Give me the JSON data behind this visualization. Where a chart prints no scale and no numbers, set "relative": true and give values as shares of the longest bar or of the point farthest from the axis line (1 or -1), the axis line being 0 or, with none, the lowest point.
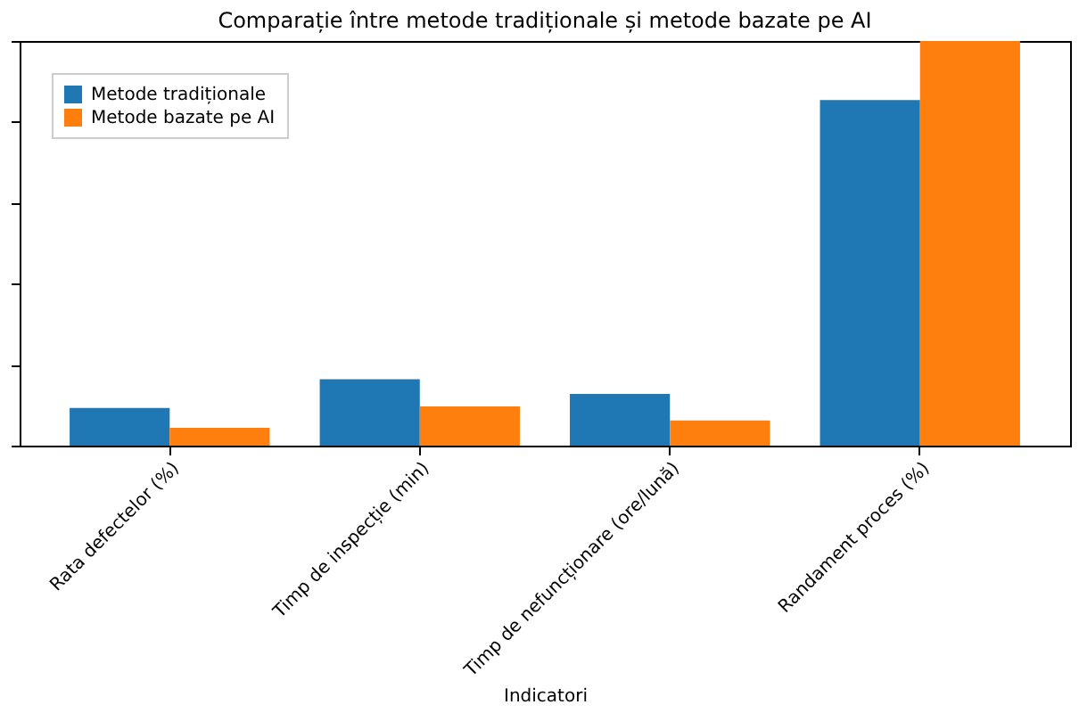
{
  "chart_data": {
    "type": "bar",
    "title": "Comparație între metode tradiționale și metode bazate pe AI",
    "xlabel": "Indicatori",
    "categories": [
      "Rata defectelor (%)",
      "Timp de inspecție (min)",
      "Timp de nefuncționare (ore/lună)",
      "Randament proces (%)"
    ],
    "relative": true,
    "legend": "top left",
    "series": [
      {
        "name": "Metode tradiționale",
        "color": "#1f77b4",
        "values": [
          0.093,
          0.164,
          0.128,
          0.854
        ]
      },
      {
        "name": "Metode bazate pe AI",
        "color": "#ff7f0e",
        "values": [
          0.044,
          0.097,
          0.062,
          1.0
        ]
      }
    ]
  }
}
